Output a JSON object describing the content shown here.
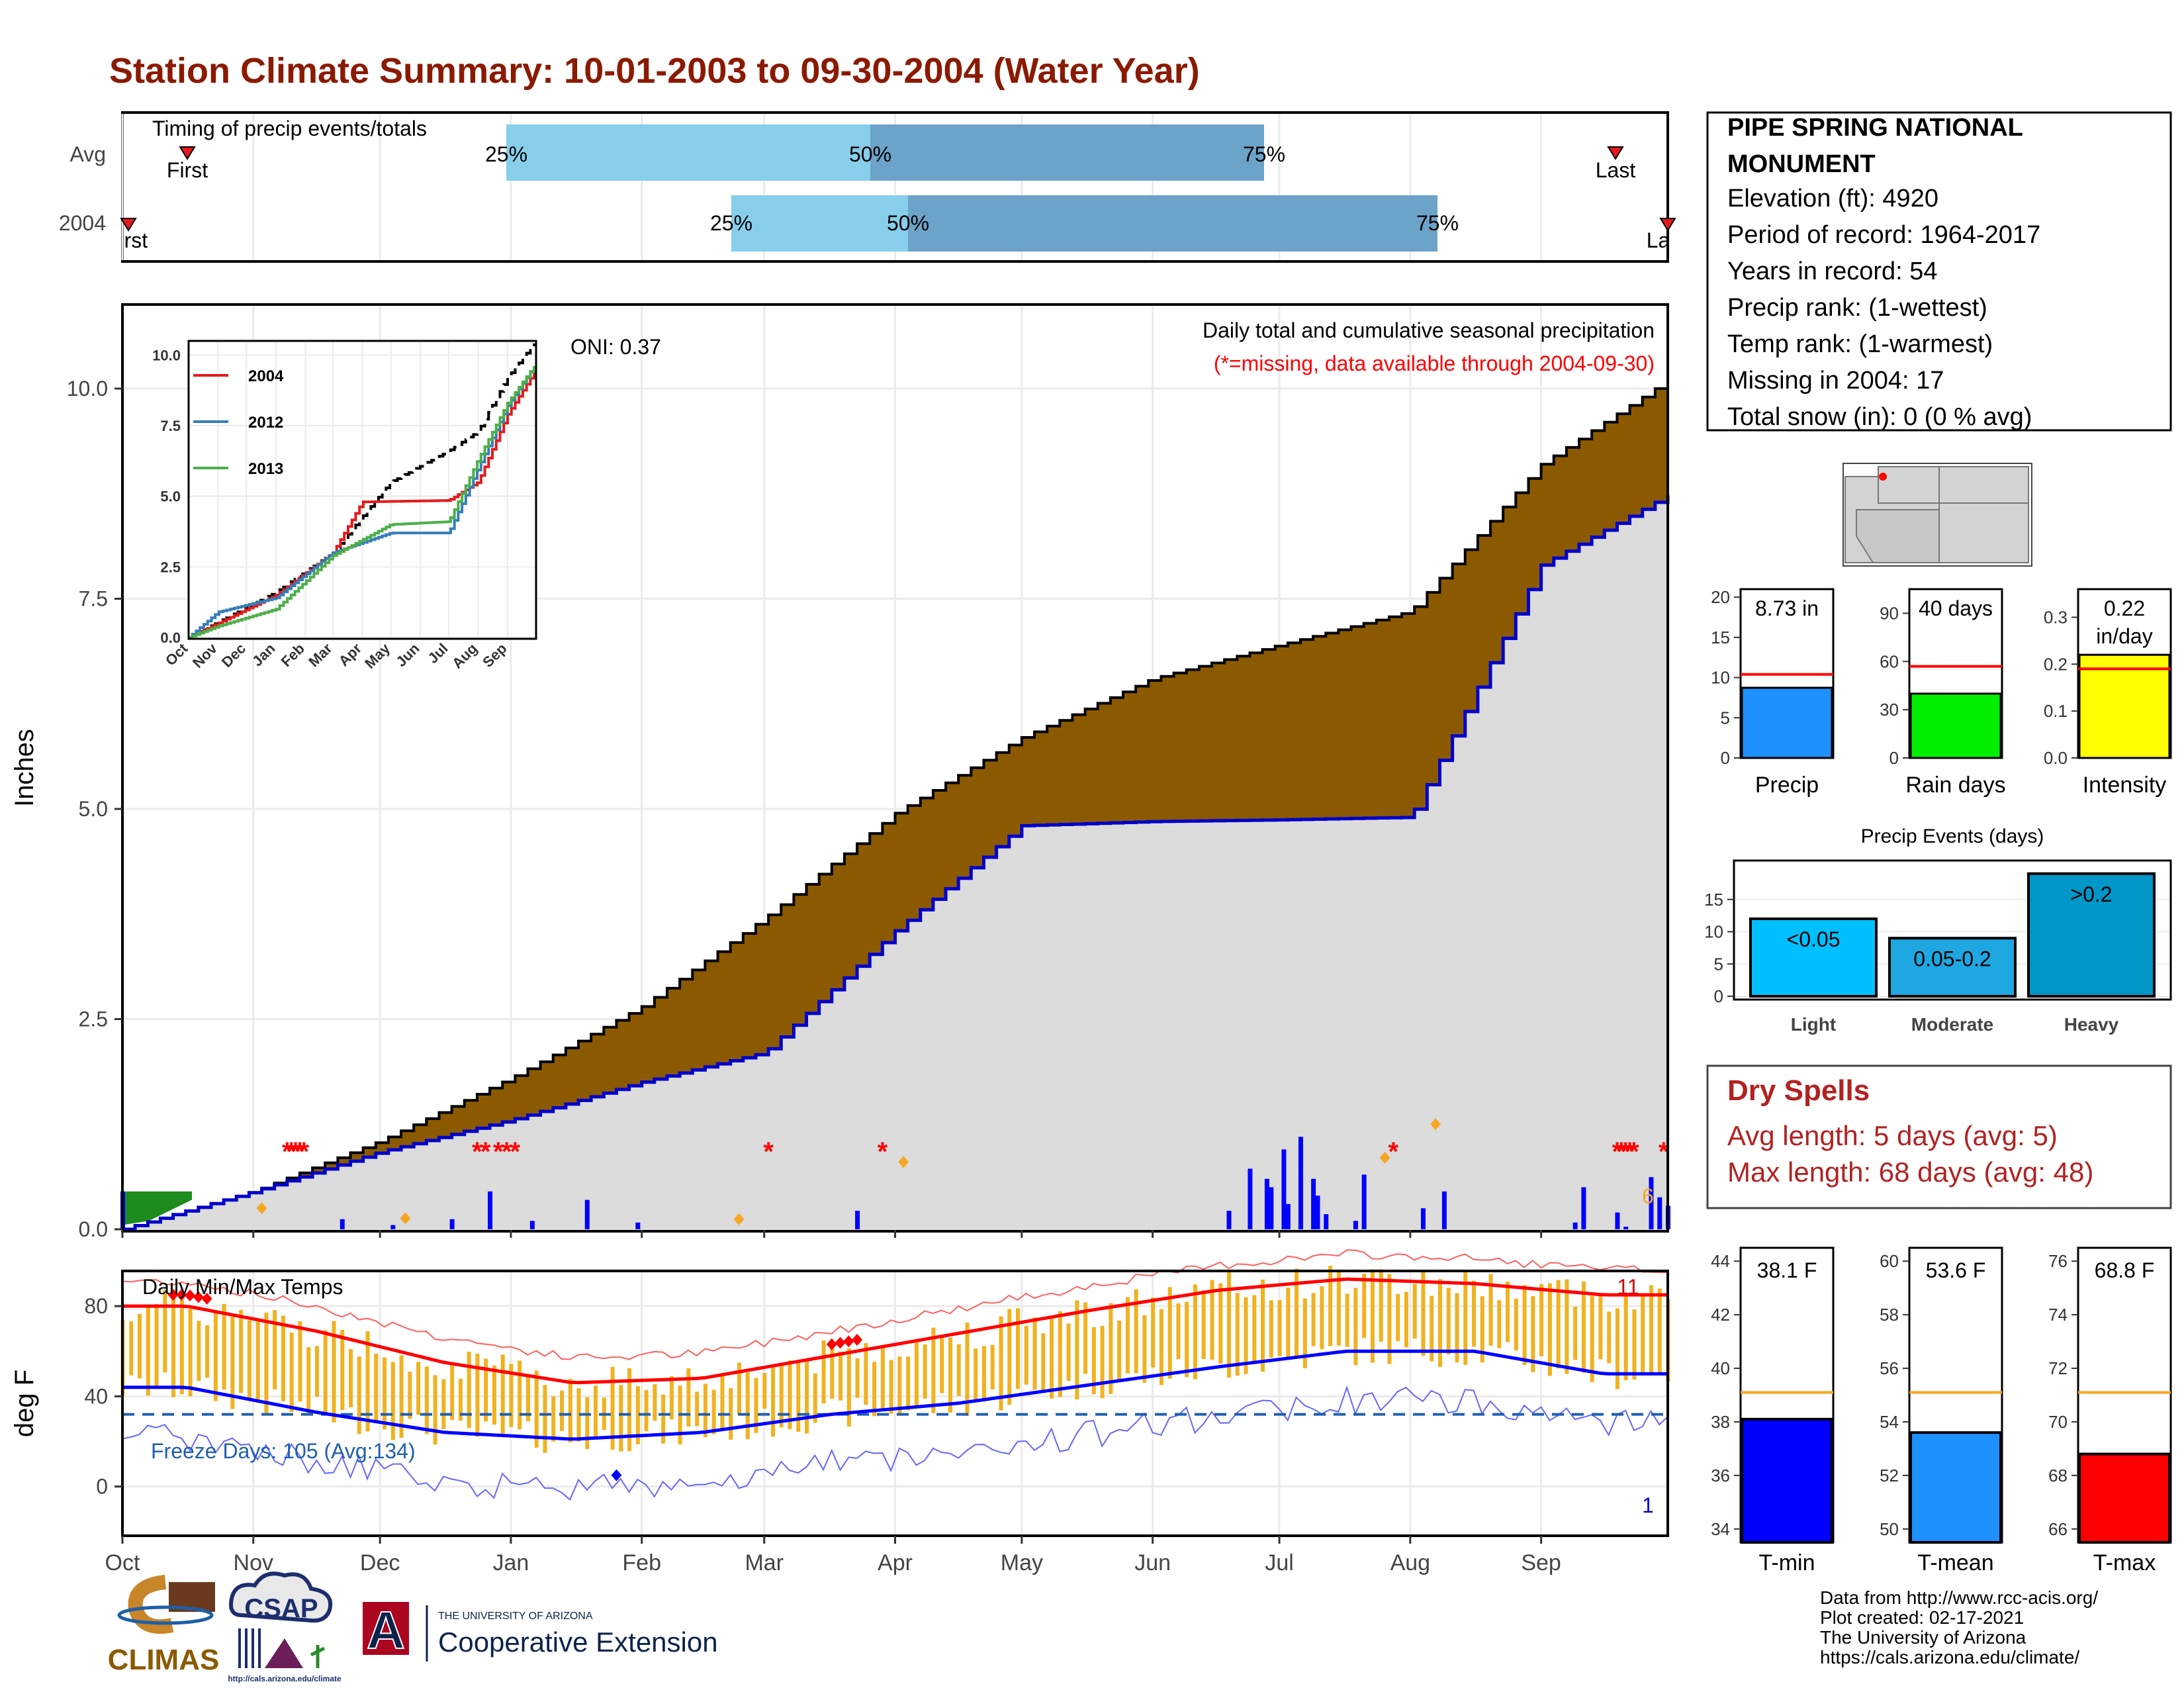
{
  "title": "Station Climate Summary: 10-01-2003 to 09-30-2004 (Water Year)",
  "colors": {
    "title": "#8B1A00",
    "panel_border": "#000000",
    "grid": "#EBEBEB",
    "timing_light": "#87CEEB",
    "timing_dark": "#6BA3C9",
    "cum_fill": "#DCDCDC",
    "cum_obs_line": "#0000CD",
    "cum_avg_fill": "#8B5A00",
    "cum_green": "#1E8B1E",
    "daily_bar": "#0000FF",
    "missing": "#FF0000",
    "marker": "#F5A623",
    "temp_bar": "#F0B21F",
    "temp_avg_max": "#FF0000",
    "temp_avg_min": "#0000FF",
    "freeze_line": "#1F5FAF",
    "dry_spells_text": "#B22222",
    "precip_bar": "#1E90FF",
    "raindays_bar": "#00EE00",
    "intensity_bar": "#FFFF00",
    "events_light": "#00BFFF",
    "events_mod": "#1EA7E0",
    "events_heavy": "#0096C8",
    "tmin_bar": "#0000FF",
    "tmean_bar": "#1E90FF",
    "tmax_bar": "#FF0000",
    "avg_line_temp": "#F5A623"
  },
  "timing": {
    "title": "Timing of precip events/totals",
    "rows": [
      "Avg",
      "2004"
    ],
    "avg": {
      "q25": "25%",
      "q50": "50%",
      "q75": "75%",
      "first": "First",
      "last": "Last"
    },
    "obs": {
      "q25": "25%",
      "q50": "50%",
      "q75": "75%",
      "first": "First",
      "last": "Last"
    }
  },
  "main": {
    "ylabel": "Inches",
    "yticks": [
      "0.0",
      "2.5",
      "5.0",
      "7.5",
      "10.0"
    ],
    "oni": "ONI: 0.37",
    "caption": "Daily total and cumulative seasonal precipitation",
    "missing_note": "(*=missing, data available through 2004-09-30)",
    "max_daily_label": "6"
  },
  "inset": {
    "yticks": [
      "0.0",
      "2.5",
      "5.0",
      "7.5",
      "10.0"
    ],
    "months": [
      "Oct",
      "Nov",
      "Dec",
      "Jan",
      "Feb",
      "Mar",
      "Apr",
      "May",
      "Jun",
      "Jul",
      "Aug",
      "Sep"
    ],
    "legend": [
      {
        "label": "2004",
        "color": "#E41A1C"
      },
      {
        "label": "2012",
        "color": "#377EB8"
      },
      {
        "label": "2013",
        "color": "#4DAF4A"
      }
    ]
  },
  "temps": {
    "ylabel": "deg F",
    "title": "Daily Min/Max Temps",
    "yticks": [
      "0",
      "40",
      "80"
    ],
    "freeze": "Freeze Days: 105 (Avg:134)",
    "max_count": "11",
    "min_count": "1"
  },
  "months": [
    "Oct",
    "Nov",
    "Dec",
    "Jan",
    "Feb",
    "Mar",
    "Apr",
    "May",
    "Jun",
    "Jul",
    "Aug",
    "Sep"
  ],
  "station": {
    "name_line1": "PIPE SPRING NATIONAL",
    "name_line2": "MONUMENT",
    "elevation": "Elevation (ft): 4920",
    "period": "Period of record: 1964-2017",
    "years": "Years in record: 54",
    "precip_rank": "Precip rank:  (1-wettest)",
    "temp_rank": "Temp rank:  (1-warmest)",
    "missing": "Missing in 2004: 17",
    "snow": "Total snow (in): 0 (0 % avg)"
  },
  "summary_bars": [
    {
      "label": "Precip",
      "value_label": "8.73 in",
      "yticks": [
        "0",
        "5",
        "10",
        "15",
        "20"
      ]
    },
    {
      "label": "Rain days",
      "value_label": "40 days",
      "yticks": [
        "0",
        "30",
        "60",
        "90"
      ]
    },
    {
      "label": "Intensity",
      "value_label": "0.22 in/day",
      "yticks": [
        "0.0",
        "0.1",
        "0.2",
        "0.3"
      ]
    }
  ],
  "events": {
    "title": "Precip Events (days)",
    "yticks": [
      "0",
      "5",
      "10",
      "15"
    ],
    "bars": [
      {
        "label": "Light",
        "value_label": "<0.05"
      },
      {
        "label": "Moderate",
        "value_label": "0.05-0.2"
      },
      {
        "label": "Heavy",
        "value_label": ">0.2"
      }
    ]
  },
  "dry_spells": {
    "title": "Dry Spells",
    "avg_length": "Avg length: 5 days (avg: 5)",
    "max_length": "Max length: 68 days (avg: 48)"
  },
  "temp_bars": [
    {
      "label": "T-min",
      "value_label": "38.1 F",
      "yticks": [
        "34",
        "36",
        "38",
        "40",
        "42",
        "44"
      ]
    },
    {
      "label": "T-mean",
      "value_label": "53.6 F",
      "yticks": [
        "50",
        "52",
        "54",
        "56",
        "58",
        "60"
      ]
    },
    {
      "label": "T-max",
      "value_label": "68.8 F",
      "yticks": [
        "66",
        "68",
        "70",
        "72",
        "74",
        "76"
      ]
    }
  ],
  "footer": {
    "line1": "Data from http://www.rcc-acis.org/",
    "line2": "Plot created: 02-17-2021",
    "line3": "The University of Arizona",
    "line4": "https://cals.arizona.edu/climate/"
  },
  "logos": {
    "climas": "CLIMAS",
    "csap": "CSAP",
    "csap_url": "http://cals.arizona.edu/climate",
    "ua_small": "THE UNIVERSITY OF ARIZONA",
    "ua_big": "Cooperative Extension",
    "ua_letter": "A"
  },
  "chart_data": [
    {
      "type": "area",
      "title": "Daily total and cumulative seasonal precipitation",
      "ylabel": "Inches",
      "ylim": [
        0,
        11
      ],
      "x_range": [
        "2003-10-01",
        "2004-09-30"
      ],
      "series": [
        {
          "name": "2004",
          "points_month_end": [
            [
              0,
              0.45
            ],
            [
              1,
              0.92
            ],
            [
              2,
              1.3
            ],
            [
              3,
              1.75
            ],
            [
              4,
              2.1
            ],
            [
              5,
              3.55
            ],
            [
              6,
              4.8
            ],
            [
              7,
              4.85
            ],
            [
              8,
              4.87
            ],
            [
              9,
              4.9
            ],
            [
              10,
              7.9
            ],
            [
              11,
              8.73
            ]
          ]
        },
        {
          "points_month_end": [
            [
              0,
              0.45
            ],
            [
              1,
              1.05
            ],
            [
              2,
              1.8
            ],
            [
              3,
              2.65
            ],
            [
              4,
              3.7
            ],
            [
              5,
              4.95
            ],
            [
              6,
              5.85
            ],
            [
              7,
              6.55
            ],
            [
              8,
              6.95
            ],
            [
              9,
              7.35
            ],
            [
              10,
              9.1
            ],
            [
              11,
              10.1
            ]
          ]
        }
      ]
    },
    {
      "type": "line",
      "title": "Daily Min/Max Temps",
      "ylabel": "deg F",
      "ylim": [
        -18,
        95
      ],
      "freeze_threshold": 32,
      "series": [
        {
          "points_monthly": [
            80,
            69,
            55,
            46,
            48,
            58,
            68,
            78,
            87,
            92,
            90,
            85
          ]
        },
        {
          "points_monthly": [
            44,
            33,
            24,
            21,
            24,
            32,
            37,
            45,
            53,
            60,
            60,
            50
          ]
        }
      ]
    },
    {
      "type": "bar",
      "categories": [
        "Precip",
        "Rain days",
        "Intensity"
      ],
      "values": [
        8.73,
        40,
        0.22
      ],
      "averages": [
        10.4,
        57,
        0.19
      ]
    },
    {
      "type": "bar",
      "title": "Precip Events (days)",
      "categories": [
        "Light",
        "Moderate",
        "Heavy"
      ],
      "values": [
        12,
        9,
        19
      ],
      "ylim": [
        0,
        20
      ]
    },
    {
      "type": "bar",
      "categories": [
        "T-min",
        "T-mean",
        "T-max"
      ],
      "values": [
        38.1,
        53.6,
        68.8
      ],
      "averages": [
        39.1,
        55.1,
        71.1
      ]
    }
  ]
}
